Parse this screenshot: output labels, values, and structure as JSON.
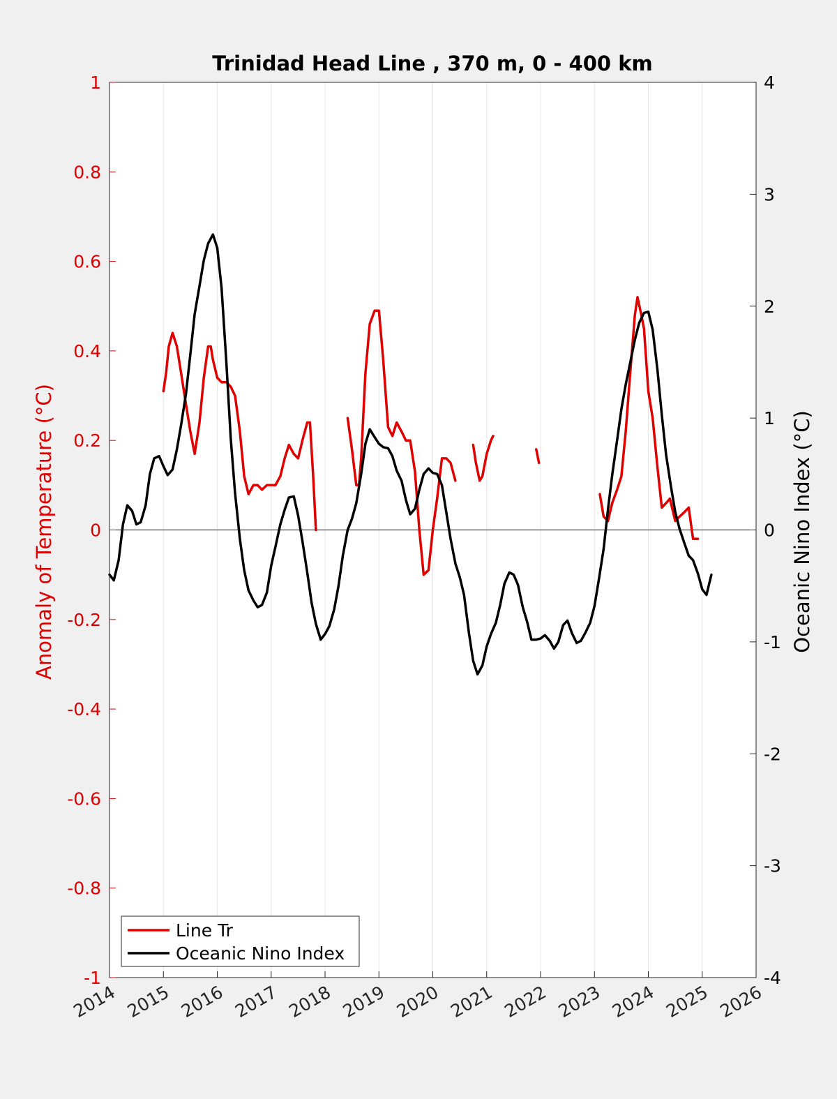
{
  "chart_data": {
    "type": "line",
    "title": "Trinidad Head Line , 370 m, 0 - 400 km",
    "xlabel": "",
    "ylabel_left": "Anomaly of Temperature (°C)",
    "ylabel_right": "Oceanic Nino Index (°C)",
    "xlim": [
      2014,
      2026
    ],
    "ylim_left": [
      -1,
      1
    ],
    "ylim_right": [
      -4,
      4
    ],
    "x_ticks": [
      "2014",
      "2015",
      "2016",
      "2017",
      "2018",
      "2019",
      "2020",
      "2021",
      "2022",
      "2023",
      "2024",
      "2025",
      "2026"
    ],
    "y_ticks_left": [
      "-1",
      "-0.8",
      "-0.6",
      "-0.4",
      "-0.2",
      "0",
      "0.2",
      "0.4",
      "0.6",
      "0.8",
      "1"
    ],
    "y_ticks_right": [
      "-4",
      "-3",
      "-2",
      "-1",
      "0",
      "1",
      "2",
      "3",
      "4"
    ],
    "grid": "vertical",
    "legend_position": "bottom-left",
    "colors": {
      "line_tr": "#e00000",
      "oni": "#000000",
      "grid": "#e6e6e6",
      "figure_bg": "#f0f0f0",
      "axes_bg": "#ffffff"
    },
    "series": [
      {
        "name": "Line Tr",
        "axis": "left",
        "segments": [
          [
            [
              2015.0,
              0.31
            ],
            [
              2015.05,
              0.35
            ],
            [
              2015.1,
              0.41
            ],
            [
              2015.17,
              0.44
            ],
            [
              2015.25,
              0.41
            ],
            [
              2015.33,
              0.35
            ],
            [
              2015.42,
              0.28
            ],
            [
              2015.5,
              0.22
            ],
            [
              2015.58,
              0.17
            ],
            [
              2015.67,
              0.24
            ],
            [
              2015.75,
              0.34
            ],
            [
              2015.83,
              0.41
            ],
            [
              2015.88,
              0.41
            ],
            [
              2015.92,
              0.38
            ],
            [
              2016.0,
              0.34
            ],
            [
              2016.08,
              0.33
            ],
            [
              2016.17,
              0.33
            ],
            [
              2016.25,
              0.32
            ],
            [
              2016.33,
              0.3
            ],
            [
              2016.42,
              0.22
            ],
            [
              2016.5,
              0.12
            ],
            [
              2016.58,
              0.08
            ],
            [
              2016.67,
              0.1
            ],
            [
              2016.75,
              0.1
            ],
            [
              2016.83,
              0.09
            ],
            [
              2016.92,
              0.1
            ],
            [
              2017.0,
              0.1
            ],
            [
              2017.08,
              0.1
            ],
            [
              2017.17,
              0.12
            ],
            [
              2017.25,
              0.16
            ],
            [
              2017.33,
              0.19
            ],
            [
              2017.42,
              0.17
            ],
            [
              2017.5,
              0.16
            ],
            [
              2017.58,
              0.2
            ],
            [
              2017.67,
              0.24
            ],
            [
              2017.72,
              0.24
            ],
            [
              2017.78,
              0.12
            ],
            [
              2017.83,
              0.0
            ]
          ],
          [
            [
              2018.42,
              0.25
            ],
            [
              2018.5,
              0.18
            ],
            [
              2018.58,
              0.1
            ],
            [
              2018.63,
              0.1
            ],
            [
              2018.67,
              0.16
            ],
            [
              2018.75,
              0.35
            ],
            [
              2018.83,
              0.46
            ],
            [
              2018.92,
              0.49
            ],
            [
              2019.0,
              0.49
            ],
            [
              2019.08,
              0.38
            ],
            [
              2019.17,
              0.23
            ],
            [
              2019.25,
              0.21
            ],
            [
              2019.33,
              0.24
            ],
            [
              2019.42,
              0.22
            ],
            [
              2019.5,
              0.2
            ],
            [
              2019.58,
              0.2
            ],
            [
              2019.67,
              0.13
            ],
            [
              2019.75,
              0.0
            ],
            [
              2019.83,
              -0.1
            ],
            [
              2019.92,
              -0.09
            ],
            [
              2020.0,
              0.0
            ],
            [
              2020.08,
              0.07
            ],
            [
              2020.17,
              0.16
            ],
            [
              2020.25,
              0.16
            ],
            [
              2020.33,
              0.15
            ],
            [
              2020.42,
              0.11
            ]
          ],
          [
            [
              2020.75,
              0.19
            ],
            [
              2020.8,
              0.15
            ],
            [
              2020.87,
              0.11
            ],
            [
              2020.92,
              0.12
            ],
            [
              2021.0,
              0.17
            ],
            [
              2021.08,
              0.2
            ],
            [
              2021.12,
              0.21
            ]
          ],
          [
            [
              2021.92,
              0.18
            ],
            [
              2021.97,
              0.15
            ]
          ],
          [
            [
              2023.1,
              0.08
            ],
            [
              2023.17,
              0.03
            ],
            [
              2023.25,
              0.02
            ],
            [
              2023.33,
              0.06
            ],
            [
              2023.42,
              0.09
            ],
            [
              2023.5,
              0.12
            ],
            [
              2023.58,
              0.22
            ],
            [
              2023.67,
              0.36
            ],
            [
              2023.75,
              0.48
            ],
            [
              2023.8,
              0.52
            ],
            [
              2023.87,
              0.48
            ],
            [
              2023.92,
              0.45
            ],
            [
              2024.0,
              0.31
            ],
            [
              2024.08,
              0.25
            ],
            [
              2024.17,
              0.14
            ],
            [
              2024.25,
              0.05
            ],
            [
              2024.33,
              0.06
            ],
            [
              2024.4,
              0.07
            ],
            [
              2024.5,
              0.02
            ],
            [
              2024.58,
              0.03
            ],
            [
              2024.67,
              0.04
            ],
            [
              2024.75,
              0.05
            ],
            [
              2024.83,
              -0.02
            ],
            [
              2024.92,
              -0.02
            ]
          ]
        ]
      },
      {
        "name": "Oceanic Nino Index",
        "axis": "right",
        "segments": [
          [
            [
              2014.0,
              -0.4
            ],
            [
              2014.08,
              -0.45
            ],
            [
              2014.17,
              -0.27
            ],
            [
              2014.25,
              0.05
            ],
            [
              2014.33,
              0.22
            ],
            [
              2014.42,
              0.17
            ],
            [
              2014.5,
              0.05
            ],
            [
              2014.58,
              0.07
            ],
            [
              2014.67,
              0.22
            ],
            [
              2014.75,
              0.5
            ],
            [
              2014.83,
              0.64
            ],
            [
              2014.92,
              0.66
            ],
            [
              2015.0,
              0.57
            ],
            [
              2015.08,
              0.49
            ],
            [
              2015.17,
              0.54
            ],
            [
              2015.25,
              0.72
            ],
            [
              2015.33,
              0.94
            ],
            [
              2015.42,
              1.22
            ],
            [
              2015.5,
              1.57
            ],
            [
              2015.58,
              1.93
            ],
            [
              2015.67,
              2.18
            ],
            [
              2015.75,
              2.41
            ],
            [
              2015.83,
              2.56
            ],
            [
              2015.92,
              2.64
            ],
            [
              2016.0,
              2.52
            ],
            [
              2016.08,
              2.16
            ],
            [
              2016.17,
              1.49
            ],
            [
              2016.25,
              0.82
            ],
            [
              2016.33,
              0.33
            ],
            [
              2016.42,
              -0.08
            ],
            [
              2016.5,
              -0.36
            ],
            [
              2016.58,
              -0.54
            ],
            [
              2016.67,
              -0.63
            ],
            [
              2016.75,
              -0.69
            ],
            [
              2016.83,
              -0.67
            ],
            [
              2016.92,
              -0.56
            ],
            [
              2017.0,
              -0.32
            ],
            [
              2017.08,
              -0.15
            ],
            [
              2017.17,
              0.05
            ],
            [
              2017.25,
              0.18
            ],
            [
              2017.33,
              0.29
            ],
            [
              2017.42,
              0.3
            ],
            [
              2017.5,
              0.13
            ],
            [
              2017.58,
              -0.1
            ],
            [
              2017.67,
              -0.38
            ],
            [
              2017.75,
              -0.65
            ],
            [
              2017.83,
              -0.84
            ],
            [
              2017.92,
              -0.98
            ],
            [
              2018.0,
              -0.93
            ],
            [
              2018.08,
              -0.86
            ],
            [
              2018.17,
              -0.71
            ],
            [
              2018.25,
              -0.5
            ],
            [
              2018.33,
              -0.23
            ],
            [
              2018.42,
              0.0
            ],
            [
              2018.5,
              0.1
            ],
            [
              2018.58,
              0.24
            ],
            [
              2018.67,
              0.5
            ],
            [
              2018.75,
              0.77
            ],
            [
              2018.83,
              0.9
            ],
            [
              2018.92,
              0.83
            ],
            [
              2019.0,
              0.77
            ],
            [
              2019.08,
              0.74
            ],
            [
              2019.17,
              0.73
            ],
            [
              2019.25,
              0.66
            ],
            [
              2019.33,
              0.53
            ],
            [
              2019.42,
              0.44
            ],
            [
              2019.5,
              0.27
            ],
            [
              2019.58,
              0.14
            ],
            [
              2019.67,
              0.19
            ],
            [
              2019.75,
              0.36
            ],
            [
              2019.83,
              0.5
            ],
            [
              2019.92,
              0.55
            ],
            [
              2020.0,
              0.51
            ],
            [
              2020.08,
              0.5
            ],
            [
              2020.17,
              0.4
            ],
            [
              2020.25,
              0.16
            ],
            [
              2020.33,
              -0.08
            ],
            [
              2020.42,
              -0.3
            ],
            [
              2020.5,
              -0.42
            ],
            [
              2020.58,
              -0.58
            ],
            [
              2020.67,
              -0.92
            ],
            [
              2020.75,
              -1.17
            ],
            [
              2020.83,
              -1.29
            ],
            [
              2020.92,
              -1.21
            ],
            [
              2021.0,
              -1.04
            ],
            [
              2021.08,
              -0.93
            ],
            [
              2021.17,
              -0.83
            ],
            [
              2021.25,
              -0.67
            ],
            [
              2021.33,
              -0.48
            ],
            [
              2021.42,
              -0.38
            ],
            [
              2021.5,
              -0.4
            ],
            [
              2021.58,
              -0.49
            ],
            [
              2021.67,
              -0.69
            ],
            [
              2021.75,
              -0.82
            ],
            [
              2021.83,
              -0.98
            ],
            [
              2021.92,
              -0.98
            ],
            [
              2022.0,
              -0.97
            ],
            [
              2022.08,
              -0.94
            ],
            [
              2022.17,
              -0.99
            ],
            [
              2022.25,
              -1.06
            ],
            [
              2022.33,
              -1.0
            ],
            [
              2022.42,
              -0.85
            ],
            [
              2022.5,
              -0.81
            ],
            [
              2022.58,
              -0.92
            ],
            [
              2022.67,
              -1.01
            ],
            [
              2022.75,
              -0.99
            ],
            [
              2022.83,
              -0.92
            ],
            [
              2022.92,
              -0.83
            ],
            [
              2023.0,
              -0.68
            ],
            [
              2023.08,
              -0.45
            ],
            [
              2023.17,
              -0.17
            ],
            [
              2023.25,
              0.18
            ],
            [
              2023.33,
              0.49
            ],
            [
              2023.42,
              0.8
            ],
            [
              2023.5,
              1.08
            ],
            [
              2023.58,
              1.3
            ],
            [
              2023.67,
              1.51
            ],
            [
              2023.75,
              1.7
            ],
            [
              2023.83,
              1.85
            ],
            [
              2023.92,
              1.94
            ],
            [
              2024.0,
              1.95
            ],
            [
              2024.08,
              1.79
            ],
            [
              2024.17,
              1.43
            ],
            [
              2024.25,
              1.03
            ],
            [
              2024.33,
              0.67
            ],
            [
              2024.42,
              0.39
            ],
            [
              2024.5,
              0.16
            ],
            [
              2024.58,
              0.01
            ],
            [
              2024.67,
              -0.12
            ],
            [
              2024.75,
              -0.23
            ],
            [
              2024.83,
              -0.27
            ],
            [
              2024.92,
              -0.39
            ],
            [
              2025.0,
              -0.53
            ],
            [
              2025.08,
              -0.58
            ],
            [
              2025.17,
              -0.4
            ]
          ]
        ]
      }
    ]
  }
}
